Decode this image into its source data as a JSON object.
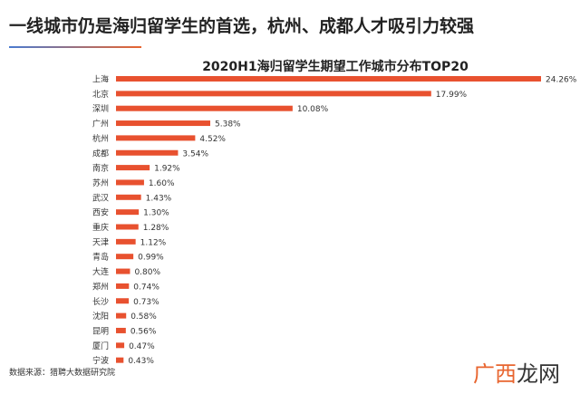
{
  "header": {
    "title": "一线城市仍是海归留学生的首选，杭州、成都人才吸引力较强"
  },
  "source": "数据来源：猎聘大数据研究院",
  "watermark": {
    "part1": "广西",
    "part2": "龙网"
  },
  "chart_data": {
    "type": "bar",
    "orientation": "horizontal",
    "title": "2020H1海归留学生期望工作城市分布TOP20",
    "categories": [
      "上海",
      "北京",
      "深圳",
      "广州",
      "杭州",
      "成都",
      "南京",
      "苏州",
      "武汉",
      "西安",
      "重庆",
      "天津",
      "青岛",
      "大连",
      "郑州",
      "长沙",
      "沈阳",
      "昆明",
      "厦门",
      "宁波"
    ],
    "values": [
      24.26,
      17.99,
      10.08,
      5.38,
      4.52,
      3.54,
      1.92,
      1.6,
      1.43,
      1.3,
      1.28,
      1.12,
      0.99,
      0.8,
      0.74,
      0.73,
      0.58,
      0.56,
      0.47,
      0.43
    ],
    "labels": [
      "24.26%",
      "17.99%",
      "10.08%",
      "5.38%",
      "4.52%",
      "3.54%",
      "1.92%",
      "1.60%",
      "1.43%",
      "1.30%",
      "1.28%",
      "1.12%",
      "0.99%",
      "0.80%",
      "0.74%",
      "0.73%",
      "0.58%",
      "0.56%",
      "0.47%",
      "0.43%"
    ],
    "bar_color": "#e8512f",
    "grid": false
  }
}
